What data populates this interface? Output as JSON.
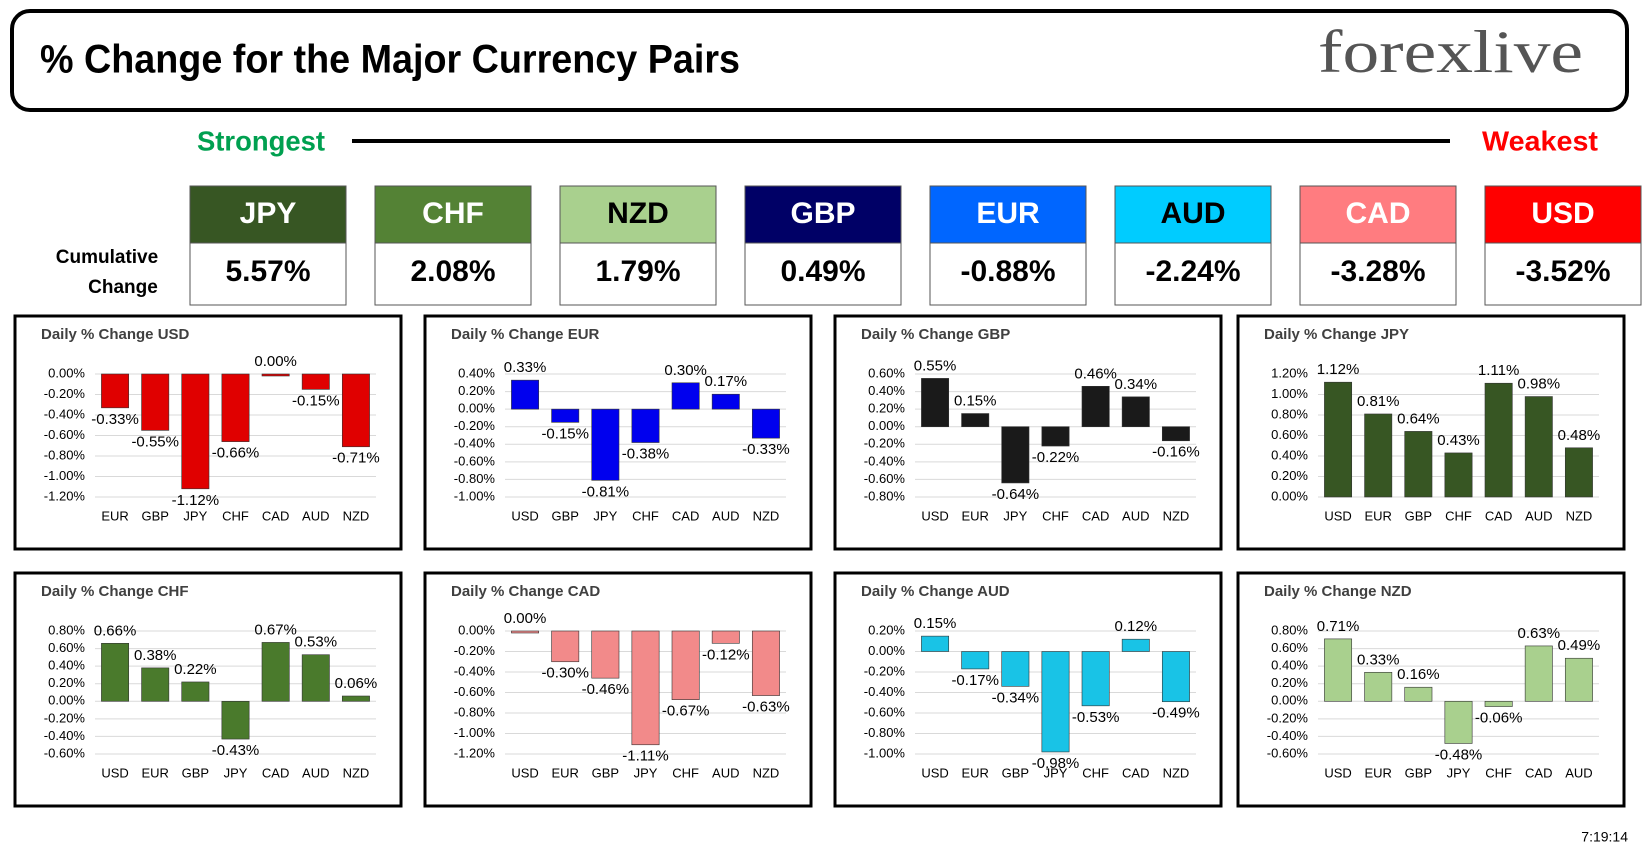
{
  "header": {
    "title": "% Change for the Major Currency Pairs",
    "logo": "forexlive"
  },
  "summary": {
    "strongest": "Strongest",
    "weakest": "Weakest",
    "row_label": [
      "Cumulative",
      "Change"
    ],
    "currencies": [
      {
        "name": "JPY",
        "change": "5.57%",
        "color": "#375623",
        "text_color": "#ffffff"
      },
      {
        "name": "CHF",
        "change": "2.08%",
        "color": "#548235",
        "text_color": "#ffffff"
      },
      {
        "name": "NZD",
        "change": "1.79%",
        "color": "#a9d08e",
        "text_color": "#000000"
      },
      {
        "name": "GBP",
        "change": "0.49%",
        "color": "#000066",
        "text_color": "#ffffff"
      },
      {
        "name": "EUR",
        "change": "-0.88%",
        "color": "#0066ff",
        "text_color": "#ffffff"
      },
      {
        "name": "AUD",
        "change": "-2.24%",
        "color": "#00ccff",
        "text_color": "#000000"
      },
      {
        "name": "CAD",
        "change": "-3.28%",
        "color": "#ff7c80",
        "text_color": "#ffffff"
      },
      {
        "name": "USD",
        "change": "-3.52%",
        "color": "#ff0000",
        "text_color": "#ffffff"
      }
    ]
  },
  "timestamp": "7:19:14",
  "chart_data": [
    {
      "type": "bar",
      "title": "Daily % Change USD",
      "color": "#e00000",
      "categories": [
        "EUR",
        "GBP",
        "JPY",
        "CHF",
        "CAD",
        "AUD",
        "NZD"
      ],
      "values": [
        -0.33,
        -0.55,
        -1.12,
        -0.66,
        0.0,
        -0.15,
        -0.71
      ],
      "value_labels": [
        "-0.33%",
        "-0.55%",
        "-1.12%",
        "-0.66%",
        "0.00%",
        "-0.15%",
        "-0.71%"
      ],
      "ylim": [
        -1.2,
        0
      ],
      "yticks": [
        {
          "value": 0,
          "label": "0.00%"
        },
        {
          "value": -0.2,
          "label": "-0.20%"
        },
        {
          "value": -0.4,
          "label": "-0.40%"
        },
        {
          "value": -0.6,
          "label": "-0.60%"
        },
        {
          "value": -0.8,
          "label": "-0.80%"
        },
        {
          "value": -1,
          "label": "-1.00%"
        },
        {
          "value": -1.2,
          "label": "-1.20%"
        }
      ]
    },
    {
      "type": "bar",
      "title": "Daily % Change EUR",
      "color": "#0000ee",
      "categories": [
        "USD",
        "GBP",
        "JPY",
        "CHF",
        "CAD",
        "AUD",
        "NZD"
      ],
      "values": [
        0.33,
        -0.15,
        -0.81,
        -0.38,
        0.3,
        0.17,
        -0.33
      ],
      "value_labels": [
        "0.33%",
        "-0.15%",
        "-0.81%",
        "-0.38%",
        "0.30%",
        "0.17%",
        "-0.33%"
      ],
      "ylim": [
        -1,
        0.4
      ],
      "yticks": [
        {
          "value": 0.4,
          "label": "0.40%"
        },
        {
          "value": 0.2,
          "label": "0.20%"
        },
        {
          "value": 0,
          "label": "0.00%"
        },
        {
          "value": -0.2,
          "label": "-0.20%"
        },
        {
          "value": -0.4,
          "label": "-0.40%"
        },
        {
          "value": -0.6,
          "label": "-0.60%"
        },
        {
          "value": -0.8,
          "label": "-0.80%"
        },
        {
          "value": -1,
          "label": "-1.00%"
        }
      ]
    },
    {
      "type": "bar",
      "title": "Daily % Change GBP",
      "color": "#1a1a1a",
      "categories": [
        "USD",
        "EUR",
        "JPY",
        "CHF",
        "CAD",
        "AUD",
        "NZD"
      ],
      "values": [
        0.55,
        0.15,
        -0.64,
        -0.22,
        0.46,
        0.34,
        -0.16
      ],
      "value_labels": [
        "0.55%",
        "0.15%",
        "-0.64%",
        "-0.22%",
        "0.46%",
        "0.34%",
        "-0.16%"
      ],
      "ylim": [
        -0.8,
        0.6
      ],
      "yticks": [
        {
          "value": 0.6,
          "label": "0.60%"
        },
        {
          "value": 0.4,
          "label": "0.40%"
        },
        {
          "value": 0.2,
          "label": "0.20%"
        },
        {
          "value": 0,
          "label": "0.00%"
        },
        {
          "value": -0.2,
          "label": "-0.20%"
        },
        {
          "value": -0.4,
          "label": "-0.40%"
        },
        {
          "value": -0.6,
          "label": "-0.60%"
        },
        {
          "value": -0.8,
          "label": "-0.80%"
        }
      ]
    },
    {
      "type": "bar",
      "title": "Daily % Change JPY",
      "color": "#375623",
      "categories": [
        "USD",
        "EUR",
        "GBP",
        "CHF",
        "CAD",
        "AUD",
        "NZD"
      ],
      "values": [
        1.12,
        0.81,
        0.64,
        0.43,
        1.11,
        0.98,
        0.48
      ],
      "value_labels": [
        "1.12%",
        "0.81%",
        "0.64%",
        "0.43%",
        "1.11%",
        "0.98%",
        "0.48%"
      ],
      "ylim": [
        0,
        1.2
      ],
      "yticks": [
        {
          "value": 1.2,
          "label": "1.20%"
        },
        {
          "value": 1,
          "label": "1.00%"
        },
        {
          "value": 0.8,
          "label": "0.80%"
        },
        {
          "value": 0.6,
          "label": "0.60%"
        },
        {
          "value": 0.4,
          "label": "0.40%"
        },
        {
          "value": 0.2,
          "label": "0.20%"
        },
        {
          "value": 0,
          "label": "0.00%"
        }
      ]
    },
    {
      "type": "bar",
      "title": "Daily % Change CHF",
      "color": "#4a7a2c",
      "categories": [
        "USD",
        "EUR",
        "GBP",
        "JPY",
        "CAD",
        "AUD",
        "NZD"
      ],
      "values": [
        0.66,
        0.38,
        0.22,
        -0.43,
        0.67,
        0.53,
        0.06
      ],
      "value_labels": [
        "0.66%",
        "0.38%",
        "0.22%",
        "-0.43%",
        "0.67%",
        "0.53%",
        "0.06%"
      ],
      "ylim": [
        -0.6,
        0.8
      ],
      "yticks": [
        {
          "value": 0.8,
          "label": "0.80%"
        },
        {
          "value": 0.6,
          "label": "0.60%"
        },
        {
          "value": 0.4,
          "label": "0.40%"
        },
        {
          "value": 0.2,
          "label": "0.20%"
        },
        {
          "value": 0,
          "label": "0.00%"
        },
        {
          "value": -0.2,
          "label": "-0.20%"
        },
        {
          "value": -0.4,
          "label": "-0.40%"
        },
        {
          "value": -0.6,
          "label": "-0.60%"
        }
      ]
    },
    {
      "type": "bar",
      "title": "Daily % Change CAD",
      "color": "#f28a8a",
      "categories": [
        "USD",
        "EUR",
        "GBP",
        "JPY",
        "CHF",
        "AUD",
        "NZD"
      ],
      "values": [
        0.0,
        -0.3,
        -0.46,
        -1.11,
        -0.67,
        -0.12,
        -0.63
      ],
      "value_labels": [
        "0.00%",
        "-0.30%",
        "-0.46%",
        "-1.11%",
        "-0.67%",
        "-0.12%",
        "-0.63%"
      ],
      "ylim": [
        -1.2,
        0
      ],
      "yticks": [
        {
          "value": 0,
          "label": "0.00%"
        },
        {
          "value": -0.2,
          "label": "-0.20%"
        },
        {
          "value": -0.4,
          "label": "-0.40%"
        },
        {
          "value": -0.6,
          "label": "-0.60%"
        },
        {
          "value": -0.8,
          "label": "-0.80%"
        },
        {
          "value": -1,
          "label": "-1.00%"
        },
        {
          "value": -1.2,
          "label": "-1.20%"
        }
      ]
    },
    {
      "type": "bar",
      "title": "Daily % Change AUD",
      "color": "#19c3e6",
      "categories": [
        "USD",
        "EUR",
        "GBP",
        "JPY",
        "CHF",
        "CAD",
        "NZD"
      ],
      "values": [
        0.15,
        -0.17,
        -0.34,
        -0.98,
        -0.53,
        0.12,
        -0.49
      ],
      "value_labels": [
        "0.15%",
        "-0.17%",
        "-0.34%",
        "-0.98%",
        "-0.53%",
        "0.12%",
        "-0.49%"
      ],
      "ylim": [
        -1,
        0.2
      ],
      "yticks": [
        {
          "value": 0.2,
          "label": "0.20%"
        },
        {
          "value": 0,
          "label": "0.00%"
        },
        {
          "value": -0.2,
          "label": "-0.20%"
        },
        {
          "value": -0.4,
          "label": "-0.40%"
        },
        {
          "value": -0.6,
          "label": "-0.60%"
        },
        {
          "value": -0.8,
          "label": "-0.80%"
        },
        {
          "value": -1,
          "label": "-1.00%"
        }
      ]
    },
    {
      "type": "bar",
      "title": "Daily % Change NZD",
      "color": "#a9d08e",
      "categories": [
        "USD",
        "EUR",
        "GBP",
        "JPY",
        "CHF",
        "CAD",
        "AUD"
      ],
      "values": [
        0.71,
        0.33,
        0.16,
        -0.48,
        -0.06,
        0.63,
        0.49
      ],
      "value_labels": [
        "0.71%",
        "0.33%",
        "0.16%",
        "-0.48%",
        "-0.06%",
        "0.63%",
        "0.49%"
      ],
      "ylim": [
        -0.6,
        0.8
      ],
      "yticks": [
        {
          "value": 0.8,
          "label": "0.80%"
        },
        {
          "value": 0.6,
          "label": "0.60%"
        },
        {
          "value": 0.4,
          "label": "0.40%"
        },
        {
          "value": 0.2,
          "label": "0.20%"
        },
        {
          "value": 0,
          "label": "0.00%"
        },
        {
          "value": -0.2,
          "label": "-0.20%"
        },
        {
          "value": -0.4,
          "label": "-0.40%"
        },
        {
          "value": -0.6,
          "label": "-0.60%"
        }
      ]
    }
  ]
}
